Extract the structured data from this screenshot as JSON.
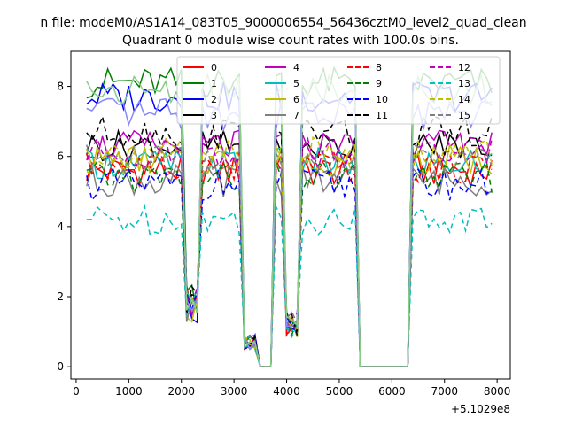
{
  "chart_data": {
    "type": "line",
    "suptitle": "n file: modeM0/AS1A14_083T05_9000006554_56436cztM0_level2_quad_clean",
    "title": "Quadrant 0 module wise count rates with 100.0s bins.",
    "xlabel": "",
    "ylabel": "",
    "x_offset_label": "+5.1029e8",
    "xlim": [
      -100,
      8250
    ],
    "ylim": [
      -0.35,
      9.0
    ],
    "x_ticks": [
      0,
      1000,
      2000,
      3000,
      4000,
      5000,
      6000,
      7000,
      8000
    ],
    "y_ticks": [
      0,
      2,
      4,
      6,
      8
    ],
    "legend_location": "upper center, 4 columns",
    "gaps": [
      {
        "from": 2100,
        "to": 2350,
        "dip": 1.8
      },
      {
        "from": 3200,
        "to": 3450,
        "dip": 0.7
      },
      {
        "from": 3500,
        "to": 3720,
        "dip": 0.0
      },
      {
        "from": 3950,
        "to": 4200,
        "dip": 1.2
      },
      {
        "from": 5400,
        "to": 6350,
        "dip": 0.0
      }
    ],
    "x": [
      200,
      300,
      400,
      500,
      600,
      700,
      800,
      900,
      1000,
      1100,
      1200,
      1300,
      1400,
      1500,
      1600,
      1700,
      1800,
      1900,
      2000,
      2100,
      2200,
      2300,
      2400,
      2500,
      2600,
      2700,
      2800,
      2900,
      3000,
      3100,
      3200,
      3300,
      3400,
      3500,
      3600,
      3700,
      3800,
      3900,
      4000,
      4100,
      4200,
      4300,
      4400,
      4500,
      4600,
      4700,
      4800,
      4900,
      5000,
      5100,
      5200,
      5300,
      5400,
      5500,
      5600,
      5700,
      5800,
      5900,
      6000,
      6100,
      6200,
      6300,
      6400,
      6500,
      6600,
      6700,
      6800,
      6900,
      7000,
      7100,
      7200,
      7300,
      7400,
      7500,
      7600,
      7700,
      7800,
      7900
    ],
    "series": [
      {
        "name": "0",
        "color": "#ff0000",
        "dash": "solid",
        "level": 5.6
      },
      {
        "name": "1",
        "color": "#008000",
        "dash": "solid",
        "level": 8.1
      },
      {
        "name": "2",
        "color": "#0000ff",
        "dash": "solid",
        "level": 7.7
      },
      {
        "name": "3",
        "color": "#000000",
        "dash": "solid",
        "level": 6.3
      },
      {
        "name": "4",
        "color": "#bf00bf",
        "dash": "solid",
        "level": 6.3
      },
      {
        "name": "5",
        "color": "#00bfbf",
        "dash": "solid",
        "level": 5.8
      },
      {
        "name": "6",
        "color": "#bfbf00",
        "dash": "solid",
        "level": 5.9
      },
      {
        "name": "7",
        "color": "#808080",
        "dash": "solid",
        "level": 5.3
      },
      {
        "name": "8",
        "color": "#ff0000",
        "dash": "dashed",
        "level": 5.7
      },
      {
        "name": "9",
        "color": "#008000",
        "dash": "dashed",
        "level": 5.4
      },
      {
        "name": "10",
        "color": "#0000ff",
        "dash": "dashed",
        "level": 5.2
      },
      {
        "name": "11",
        "color": "#000000",
        "dash": "dashed",
        "level": 6.7
      },
      {
        "name": "12",
        "color": "#bf00bf",
        "dash": "dashed",
        "level": 6.1
      },
      {
        "name": "13",
        "color": "#00bfbf",
        "dash": "dashed",
        "level": 4.2
      },
      {
        "name": "14",
        "color": "#bfbf00",
        "dash": "dashed",
        "level": 6.1
      },
      {
        "name": "15",
        "color": "#808080",
        "dash": "dashed",
        "level": 5.9
      },
      {
        "name": "",
        "color": "#8888ff",
        "dash": "solid",
        "level": 7.2
      },
      {
        "name": "",
        "color": "#88cc88",
        "dash": "solid",
        "level": 7.9
      }
    ]
  }
}
